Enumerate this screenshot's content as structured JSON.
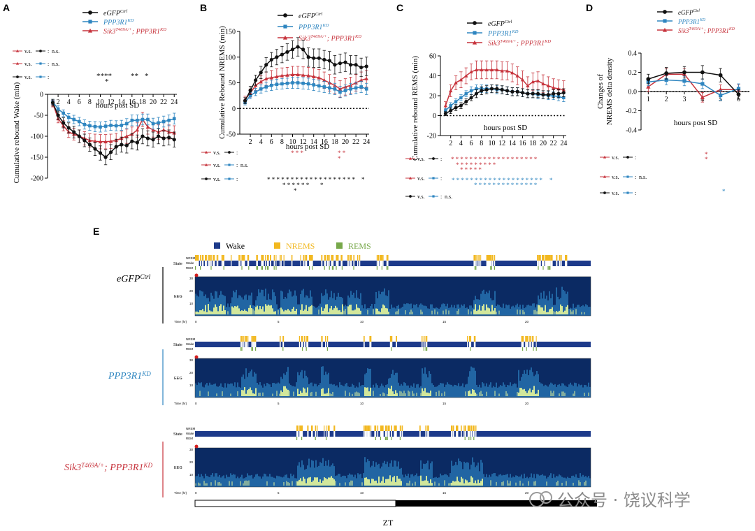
{
  "colors": {
    "black": "#111111",
    "blue": "#2f86c0",
    "red": "#c7343d",
    "wake": "#1d3a8a",
    "nrems": "#f2b820",
    "rems": "#77a84a",
    "spec_dark": "#0b2a63",
    "spec_mid": "#2a79b8",
    "spec_bright": "#e6f59a"
  },
  "legend": {
    "ctrl_italic": "eGFP",
    "ctrl_sup": "Ctrl",
    "kd_italic": "PPP3R1",
    "kd_sup": "KD",
    "sik_italic": "Sik3",
    "sik_sup": "T469A/+",
    "sik_rest": "; PPP3R1",
    "sik_rest_sup": "KD"
  },
  "stats_labels": {
    "vs": "v.s.",
    "colon": ":",
    "ns": "n.s."
  },
  "panels": {
    "A": {
      "letter": "A",
      "ylabel": "Cumulative rebound Wake (min)",
      "xlabel": "hours post SD"
    },
    "B": {
      "letter": "B",
      "ylabel": "Cumulative Rebound NREMS (min)",
      "xlabel": "hours post SD"
    },
    "C": {
      "letter": "C",
      "ylabel": "Cumulative rebound REMS (min)",
      "xlabel": "hours post SD"
    },
    "D": {
      "letter": "D",
      "ylabel1": "Changes of",
      "ylabel2": "NREMS delta density",
      "xlabel": "hours post SD"
    },
    "E": {
      "letter": "E"
    }
  },
  "hypnogram": {
    "legend": [
      "Wake",
      "NREMS",
      "REMS"
    ],
    "row_labels": [
      "NREM",
      "Wake",
      "REM"
    ],
    "state_label": "State",
    "eeg_label": "EEG",
    "time_label": "Time (hr)",
    "time_ticks": [
      "0",
      "5",
      "10",
      "15",
      "20"
    ],
    "freq_ticks": [
      "30",
      "20",
      "10"
    ],
    "genotypes": [
      "eGFP",
      "PPP3R1",
      "Sik3"
    ],
    "genotype_sups": [
      "Ctrl",
      "KD",
      "T469A/+"
    ],
    "sik_rest": "; PPP3R1",
    "sik_rest_sup": "KD",
    "zt_label": "ZT"
  },
  "watermark": "公众号 · 饶议科学",
  "chart_data": [
    {
      "type": "line",
      "panel": "A",
      "xlabel": "hours post SD",
      "ylabel": "Cumulative rebound Wake (min)",
      "x": [
        1,
        2,
        3,
        4,
        5,
        6,
        7,
        8,
        9,
        10,
        11,
        12,
        13,
        14,
        15,
        16,
        17,
        18,
        19,
        20,
        21,
        22,
        23,
        24
      ],
      "xticks": [
        2,
        4,
        6,
        8,
        10,
        12,
        14,
        16,
        18,
        20,
        22,
        24
      ],
      "ylim": [
        -200,
        0
      ],
      "yticks": [
        0,
        -50,
        -100,
        -150,
        -200
      ],
      "series": [
        {
          "name": "eGFP Ctrl",
          "color": "black",
          "values": [
            -20,
            -50,
            -68,
            -80,
            -90,
            -100,
            -110,
            -120,
            -130,
            -140,
            -150,
            -138,
            -125,
            -120,
            -122,
            -112,
            -115,
            -100,
            -105,
            -108,
            -100,
            -105,
            -103,
            -108
          ],
          "err": [
            8,
            10,
            12,
            12,
            14,
            15,
            15,
            16,
            16,
            17,
            18,
            18,
            18,
            18,
            18,
            18,
            18,
            18,
            18,
            18,
            18,
            18,
            18,
            18
          ]
        },
        {
          "name": "PPP3R1 KD",
          "color": "blue",
          "values": [
            -18,
            -35,
            -45,
            -55,
            -60,
            -65,
            -72,
            -75,
            -77,
            -78,
            -76,
            -74,
            -75,
            -74,
            -70,
            -62,
            -62,
            -60,
            -60,
            -70,
            -68,
            -65,
            -62,
            -58
          ],
          "err": [
            6,
            8,
            8,
            9,
            10,
            10,
            11,
            11,
            12,
            12,
            12,
            12,
            12,
            12,
            12,
            13,
            13,
            13,
            13,
            13,
            13,
            13,
            13,
            13
          ]
        },
        {
          "name": "Sik3 T469A/+; PPP3R1 KD",
          "color": "red",
          "values": [
            -22,
            -58,
            -75,
            -90,
            -95,
            -100,
            -105,
            -110,
            -112,
            -113,
            -113,
            -112,
            -110,
            -105,
            -100,
            -95,
            -85,
            -60,
            -78,
            -85,
            -90,
            -85,
            -90,
            -92
          ],
          "err": [
            8,
            10,
            12,
            13,
            14,
            15,
            16,
            16,
            17,
            17,
            17,
            17,
            17,
            17,
            17,
            17,
            17,
            17,
            17,
            17,
            17,
            17,
            17,
            17
          ]
        }
      ],
      "significance": {
        "rows": [
          "****",
          "*"
        ],
        "groups": [
          "**",
          "*"
        ]
      }
    },
    {
      "type": "line",
      "panel": "B",
      "xlabel": "hours post SD",
      "ylabel": "Cumulative Rebound NREMS (min)",
      "x": [
        1,
        2,
        3,
        4,
        5,
        6,
        7,
        8,
        9,
        10,
        11,
        12,
        13,
        14,
        15,
        16,
        17,
        18,
        19,
        20,
        21,
        22,
        23,
        24
      ],
      "xticks": [
        2,
        4,
        6,
        8,
        10,
        12,
        14,
        16,
        18,
        20,
        22,
        24
      ],
      "ylim": [
        -50,
        150
      ],
      "yticks": [
        -50,
        0,
        50,
        100,
        150
      ],
      "series": [
        {
          "name": "eGFP Ctrl",
          "color": "black",
          "values": [
            15,
            35,
            55,
            70,
            85,
            95,
            100,
            105,
            110,
            115,
            120,
            115,
            100,
            98,
            98,
            95,
            93,
            85,
            88,
            90,
            85,
            85,
            80,
            82
          ],
          "err": [
            6,
            8,
            10,
            12,
            14,
            14,
            15,
            16,
            16,
            17,
            18,
            18,
            18,
            18,
            18,
            18,
            18,
            18,
            18,
            18,
            18,
            18,
            18,
            18
          ]
        },
        {
          "name": "PPP3R1 KD",
          "color": "blue",
          "values": [
            12,
            25,
            32,
            38,
            42,
            45,
            47,
            48,
            49,
            50,
            50,
            49,
            48,
            46,
            44,
            42,
            40,
            38,
            32,
            35,
            38,
            40,
            42,
            38
          ],
          "err": [
            5,
            6,
            7,
            8,
            9,
            10,
            10,
            10,
            10,
            11,
            11,
            11,
            11,
            11,
            11,
            11,
            11,
            11,
            11,
            11,
            11,
            11,
            11,
            11
          ]
        },
        {
          "name": "Sik3 T469A/+; PPP3R1 KD",
          "color": "red",
          "values": [
            18,
            30,
            45,
            52,
            58,
            60,
            62,
            64,
            65,
            66,
            66,
            65,
            64,
            62,
            60,
            55,
            50,
            45,
            38,
            42,
            45,
            50,
            55,
            58
          ],
          "err": [
            6,
            8,
            10,
            12,
            13,
            14,
            15,
            15,
            15,
            16,
            16,
            16,
            16,
            16,
            16,
            16,
            16,
            16,
            16,
            16,
            16,
            16,
            16,
            16
          ]
        }
      ],
      "significance": {
        "red_top": [
          "* * *",
          "* *",
          "*"
        ],
        "black_row": [
          "* * * * * * * * * * * * * * * * * * *",
          "* * * * * *",
          "*"
        ]
      }
    },
    {
      "type": "line",
      "panel": "C",
      "xlabel": "hours post SD",
      "ylabel": "Cumulative rebound REMS (min)",
      "x": [
        1,
        2,
        3,
        4,
        5,
        6,
        7,
        8,
        9,
        10,
        11,
        12,
        13,
        14,
        15,
        16,
        17,
        18,
        19,
        20,
        21,
        22,
        23,
        24
      ],
      "xticks": [
        2,
        4,
        6,
        8,
        10,
        12,
        14,
        16,
        18,
        20,
        22,
        24
      ],
      "ylim": [
        -20,
        60
      ],
      "yticks": [
        -20,
        0,
        20,
        40,
        60
      ],
      "series": [
        {
          "name": "eGFP Ctrl",
          "color": "black",
          "values": [
            2,
            5,
            8,
            10,
            14,
            18,
            22,
            25,
            26,
            27,
            27,
            26,
            25,
            24,
            24,
            23,
            22,
            22,
            22,
            21,
            21,
            22,
            22,
            23
          ],
          "err": [
            2,
            3,
            3,
            3,
            3,
            3,
            4,
            4,
            4,
            4,
            4,
            4,
            4,
            4,
            4,
            4,
            4,
            4,
            4,
            4,
            4,
            4,
            4,
            4
          ]
        },
        {
          "name": "PPP3R1 KD",
          "color": "blue",
          "values": [
            5,
            10,
            14,
            18,
            22,
            25,
            27,
            27,
            27,
            27,
            26,
            26,
            25,
            24,
            24,
            23,
            22,
            22,
            21,
            21,
            20,
            20,
            19,
            18
          ],
          "err": [
            2,
            3,
            3,
            3,
            3,
            4,
            4,
            4,
            4,
            4,
            4,
            4,
            4,
            4,
            4,
            4,
            4,
            4,
            4,
            4,
            4,
            4,
            4,
            4
          ]
        },
        {
          "name": "Sik3 T469A/+; PPP3R1 KD",
          "color": "red",
          "values": [
            10,
            25,
            33,
            36,
            40,
            44,
            46,
            46,
            46,
            46,
            46,
            45,
            45,
            43,
            40,
            36,
            30,
            34,
            35,
            32,
            30,
            28,
            27,
            26
          ],
          "err": [
            4,
            6,
            7,
            8,
            8,
            8,
            9,
            9,
            9,
            9,
            9,
            9,
            9,
            9,
            9,
            9,
            9,
            9,
            9,
            9,
            9,
            9,
            9,
            9
          ]
        }
      ]
    },
    {
      "type": "line",
      "panel": "D",
      "xlabel": "hours post SD",
      "ylabel": "Changes of NREMS delta density",
      "x": [
        1,
        2,
        3,
        4,
        5,
        6
      ],
      "xticks": [
        1,
        2,
        3,
        4,
        5,
        6
      ],
      "ylim": [
        -0.4,
        0.4
      ],
      "yticks": [
        -0.4,
        -0.2,
        0.0,
        0.2,
        0.4
      ],
      "series": [
        {
          "name": "eGFP Ctrl",
          "color": "black",
          "values": [
            0.13,
            0.19,
            0.2,
            0.2,
            0.17,
            -0.03
          ],
          "err": [
            0.05,
            0.06,
            0.06,
            0.07,
            0.07,
            0.05
          ]
        },
        {
          "name": "PPP3R1 KD",
          "color": "blue",
          "values": [
            0.1,
            0.12,
            0.11,
            0.08,
            -0.04,
            0.03
          ],
          "err": [
            0.04,
            0.05,
            0.05,
            0.05,
            0.05,
            0.05
          ]
        },
        {
          "name": "Sik3 T469A/+; PPP3R1 KD",
          "color": "red",
          "values": [
            0.05,
            0.18,
            0.18,
            -0.06,
            0.02,
            0.02
          ],
          "err": [
            0.05,
            0.06,
            0.06,
            0.05,
            0.05,
            0.05
          ]
        }
      ]
    }
  ]
}
